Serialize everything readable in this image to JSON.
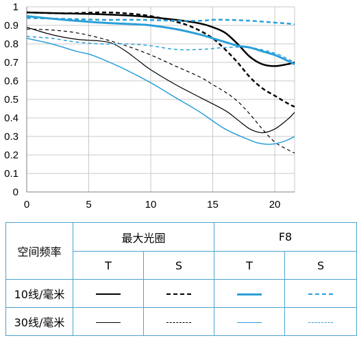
{
  "chart_data": {
    "type": "line",
    "xlim": [
      0,
      21.6
    ],
    "ylim": [
      0,
      1
    ],
    "xticks": [
      0,
      5,
      10,
      15,
      20
    ],
    "yticks": [
      0,
      0.1,
      0.2,
      0.3,
      0.4,
      0.5,
      0.6,
      0.7,
      0.8,
      0.9,
      1
    ],
    "ytick_labels": [
      "0",
      "0.1",
      "0.2",
      "0.3",
      "0.4",
      "0.5",
      "0.6",
      "0.7",
      "0.8",
      "0.9",
      "1"
    ],
    "grid": true,
    "series": [
      {
        "color": "#000000",
        "width": 2.5,
        "dash": "",
        "x": [
          0,
          3,
          6,
          9,
          12,
          14,
          15,
          16,
          17,
          18,
          19,
          20,
          21,
          21.6
        ],
        "y": [
          0.97,
          0.965,
          0.96,
          0.95,
          0.93,
          0.91,
          0.89,
          0.86,
          0.8,
          0.73,
          0.69,
          0.68,
          0.69,
          0.7
        ]
      },
      {
        "color": "#000000",
        "width": 2.5,
        "dash": "6,4",
        "x": [
          0,
          3,
          6,
          8,
          10,
          12,
          13,
          14,
          15,
          16,
          17,
          18,
          19,
          20,
          21,
          21.6
        ],
        "y": [
          0.97,
          0.965,
          0.97,
          0.965,
          0.95,
          0.92,
          0.9,
          0.87,
          0.83,
          0.77,
          0.7,
          0.62,
          0.56,
          0.52,
          0.48,
          0.46
        ]
      },
      {
        "color": "#2a9fd8",
        "width": 3,
        "dash": "",
        "x": [
          0,
          3,
          6,
          9,
          10,
          12,
          14,
          15,
          16,
          17,
          18,
          19,
          20,
          21,
          21.6
        ],
        "y": [
          0.95,
          0.93,
          0.915,
          0.905,
          0.9,
          0.88,
          0.85,
          0.83,
          0.81,
          0.79,
          0.78,
          0.76,
          0.74,
          0.71,
          0.69
        ]
      },
      {
        "color": "#2a9fd8",
        "width": 2.5,
        "dash": "6,4",
        "x": [
          0,
          3,
          6,
          9,
          12,
          14,
          15,
          16,
          18,
          20,
          21,
          21.6
        ],
        "y": [
          0.94,
          0.935,
          0.93,
          0.93,
          0.925,
          0.925,
          0.93,
          0.93,
          0.925,
          0.915,
          0.91,
          0.905
        ]
      },
      {
        "color": "#000000",
        "width": 1.2,
        "dash": "",
        "x": [
          0,
          2,
          4,
          6,
          7,
          8,
          9,
          10,
          12,
          14,
          16,
          17,
          18,
          19,
          20,
          21,
          21.6
        ],
        "y": [
          0.89,
          0.85,
          0.825,
          0.815,
          0.8,
          0.76,
          0.71,
          0.66,
          0.58,
          0.51,
          0.44,
          0.39,
          0.34,
          0.32,
          0.34,
          0.39,
          0.43
        ]
      },
      {
        "color": "#000000",
        "width": 1.2,
        "dash": "5,4",
        "x": [
          0,
          2,
          4,
          6,
          8,
          10,
          12,
          14,
          15,
          16,
          17,
          18,
          19,
          20,
          21,
          21.6
        ],
        "y": [
          0.88,
          0.875,
          0.86,
          0.83,
          0.79,
          0.74,
          0.68,
          0.62,
          0.58,
          0.54,
          0.49,
          0.42,
          0.34,
          0.27,
          0.23,
          0.21
        ]
      },
      {
        "color": "#2a9fd8",
        "width": 1.5,
        "dash": "",
        "x": [
          0,
          2,
          4,
          5,
          6,
          8,
          10,
          12,
          14,
          16,
          18,
          19,
          20,
          21,
          21.6
        ],
        "y": [
          0.83,
          0.8,
          0.76,
          0.745,
          0.72,
          0.66,
          0.59,
          0.51,
          0.43,
          0.34,
          0.28,
          0.26,
          0.26,
          0.28,
          0.3
        ]
      },
      {
        "color": "#2a9fd8",
        "width": 1.5,
        "dash": "5,4",
        "x": [
          0,
          2,
          4,
          6,
          8,
          10,
          12,
          14,
          16,
          18,
          20,
          21,
          21.6
        ],
        "y": [
          0.84,
          0.83,
          0.81,
          0.8,
          0.8,
          0.79,
          0.77,
          0.77,
          0.78,
          0.78,
          0.75,
          0.72,
          0.7
        ]
      }
    ]
  },
  "legend": {
    "row_header": "空间频率",
    "group1": "最大光圈",
    "group2": "F8",
    "t_label": "T",
    "s_label": "S",
    "row1": "10线/毫米",
    "row2": "30线/毫米"
  }
}
